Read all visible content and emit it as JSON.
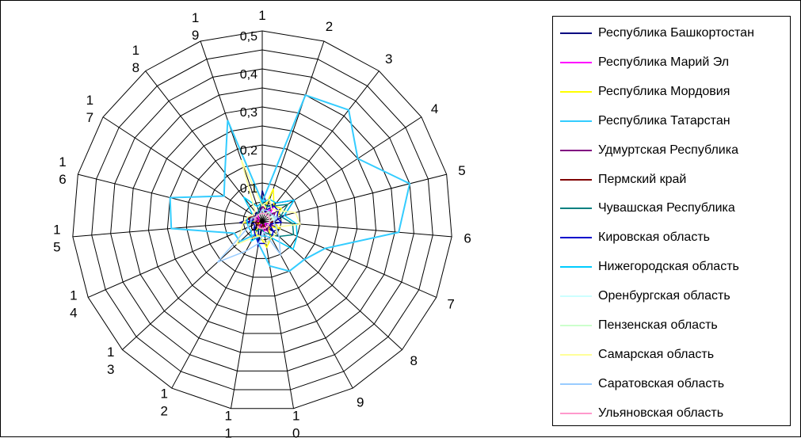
{
  "chart_data": {
    "type": "radar",
    "axes": [
      "1",
      "2",
      "3",
      "4",
      "5",
      "6",
      "7",
      "8",
      "9",
      "10",
      "11",
      "12",
      "13",
      "14",
      "15",
      "16",
      "17",
      "18",
      "19"
    ],
    "axis_label_lines": [
      [
        "1"
      ],
      [
        "2"
      ],
      [
        "3"
      ],
      [
        "4"
      ],
      [
        "5"
      ],
      [
        "6"
      ],
      [
        "7"
      ],
      [
        "8"
      ],
      [
        "9"
      ],
      [
        "1",
        "0"
      ],
      [
        "1",
        "1"
      ],
      [
        "1",
        "2"
      ],
      [
        "1",
        "3"
      ],
      [
        "1",
        "4"
      ],
      [
        "1",
        "5"
      ],
      [
        "1",
        "6"
      ],
      [
        "1",
        "7"
      ],
      [
        "1",
        "8"
      ],
      [
        "1",
        "9"
      ]
    ],
    "rmax": 0.5,
    "ticks": [
      0,
      0.1,
      0.2,
      0.3,
      0.4,
      0.5
    ],
    "tick_labels": [
      "0",
      "0,1",
      "0,2",
      "0,3",
      "0,4",
      "0,5"
    ],
    "legend_position": "right",
    "series": [
      {
        "name": "Республика Башкортостан",
        "color": "#000080",
        "values": [
          0.08,
          0.04,
          0.06,
          0.1,
          0.06,
          0.03,
          0.05,
          0.04,
          0.02,
          0.01,
          0.07,
          0.02,
          0.03,
          0.02,
          0.06,
          0.03,
          0.02,
          0.03,
          0.02
        ]
      },
      {
        "name": "Республика Марий Эл",
        "color": "#ff00ff",
        "values": [
          0.03,
          0.02,
          0.05,
          0.02,
          0.03,
          0.02,
          0.02,
          0.01,
          0.02,
          0.03,
          0.01,
          0.02,
          0.01,
          0.02,
          0.01,
          0.02,
          0.01,
          0.02,
          0.02
        ]
      },
      {
        "name": "Республика Мордовия",
        "color": "#ffff00",
        "values": [
          0.02,
          0.09,
          0.05,
          0.06,
          0.04,
          0.03,
          0.05,
          0.02,
          0.05,
          0.07,
          0.04,
          0.04,
          0.01,
          0.02,
          0.05,
          0.01,
          0.02,
          0.02,
          0.02
        ]
      },
      {
        "name": "Республика Татарстан",
        "color": "#33ccff",
        "values": [
          0.05,
          0.35,
          0.37,
          0.3,
          0.4,
          0.36,
          0.18,
          0.15,
          0.15,
          0.12,
          0.06,
          0.04,
          0.08,
          0.08,
          0.24,
          0.25,
          0.12,
          0.16,
          0.28
        ]
      },
      {
        "name": "Удмуртская Республика",
        "color": "#800080",
        "values": [
          0.04,
          0.03,
          0.02,
          0.04,
          0.03,
          0.02,
          0.03,
          0.02,
          0.03,
          0.02,
          0.02,
          0.01,
          0.02,
          0.02,
          0.02,
          0.01,
          0.02,
          0.02,
          0.02
        ]
      },
      {
        "name": "Пермский край",
        "color": "#800000",
        "values": [
          0.03,
          0.02,
          0.03,
          0.02,
          0.02,
          0.03,
          0.02,
          0.02,
          0.02,
          0.01,
          0.02,
          0.02,
          0.02,
          0.01,
          0.03,
          0.04,
          0.02,
          0.02,
          0.02
        ]
      },
      {
        "name": "Чувашская Республика",
        "color": "#008080",
        "values": [
          0.05,
          0.04,
          0.05,
          0.08,
          0.05,
          0.08,
          0.09,
          0.06,
          0.04,
          0.03,
          0.02,
          0.03,
          0.03,
          0.02,
          0.03,
          0.02,
          0.02,
          0.02,
          0.03
        ]
      },
      {
        "name": "Кировская область",
        "color": "#0000cc",
        "values": [
          0.02,
          0.03,
          0.05,
          0.05,
          0.04,
          0.05,
          0.02,
          0.04,
          0.05,
          0.06,
          0.06,
          0.04,
          0.03,
          0.02,
          0.04,
          0.02,
          0.02,
          0.02,
          0.02
        ]
      },
      {
        "name": "Нижегородская область",
        "color": "#00ccff",
        "values": [
          0.05,
          0.06,
          0.06,
          0.1,
          0.06,
          0.09,
          0.1,
          0.11,
          0.05,
          0.04,
          0.04,
          0.06,
          0.04,
          0.04,
          0.04,
          0.04,
          0.03,
          0.08,
          0.04
        ]
      },
      {
        "name": "Оренбургская область",
        "color": "#ccffff",
        "values": [
          0.03,
          0.02,
          0.03,
          0.02,
          0.04,
          0.02,
          0.02,
          0.02,
          0.02,
          0.02,
          0.02,
          0.02,
          0.02,
          0.02,
          0.02,
          0.02,
          0.02,
          0.02,
          0.02
        ]
      },
      {
        "name": "Пензенская область",
        "color": "#ccffcc",
        "values": [
          0.02,
          0.02,
          0.03,
          0.02,
          0.03,
          0.02,
          0.02,
          0.02,
          0.02,
          0.02,
          0.02,
          0.02,
          0.02,
          0.02,
          0.02,
          0.02,
          0.02,
          0.02,
          0.02
        ]
      },
      {
        "name": "Самарская область",
        "color": "#ffff99",
        "values": [
          0.04,
          0.06,
          0.04,
          0.05,
          0.09,
          0.1,
          0.04,
          0.05,
          0.05,
          0.06,
          0.04,
          0.05,
          0.09,
          0.06,
          0.05,
          0.04,
          0.03,
          0.03,
          0.17
        ]
      },
      {
        "name": "Саратовская область",
        "color": "#99ccff",
        "values": [
          0.03,
          0.03,
          0.03,
          0.03,
          0.04,
          0.03,
          0.04,
          0.06,
          0.1,
          0.03,
          0.06,
          0.09,
          0.16,
          0.04,
          0.03,
          0.03,
          0.02,
          0.02,
          0.02
        ]
      },
      {
        "name": "Ульяновская область",
        "color": "#ff99cc",
        "values": [
          0.02,
          0.02,
          0.02,
          0.02,
          0.02,
          0.02,
          0.02,
          0.02,
          0.02,
          0.02,
          0.02,
          0.02,
          0.02,
          0.02,
          0.02,
          0.02,
          0.02,
          0.02,
          0.02
        ]
      }
    ]
  }
}
